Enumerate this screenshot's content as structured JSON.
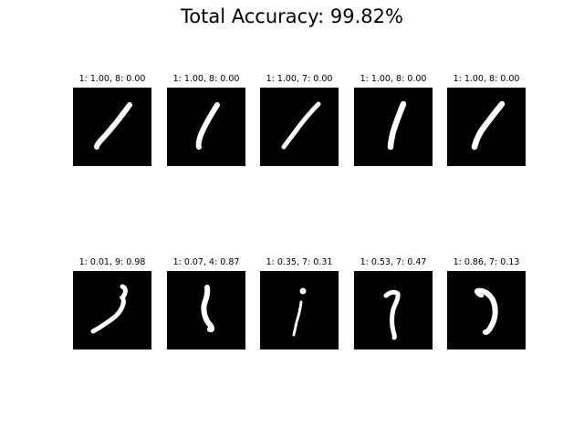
{
  "figure": {
    "title": "Total Accuracy: 99.82%"
  },
  "chart_data": {
    "type": "image-grid",
    "title": "Total Accuracy: 99.82%",
    "rows": 2,
    "cols": 5,
    "panels": [
      {
        "title": "1: 1.00, 8: 0.00",
        "top1": {
          "label": "1",
          "prob": 1.0
        },
        "top2": {
          "label": "8",
          "prob": 0.0
        }
      },
      {
        "title": "1: 1.00, 8: 0.00",
        "top1": {
          "label": "1",
          "prob": 1.0
        },
        "top2": {
          "label": "8",
          "prob": 0.0
        }
      },
      {
        "title": "1: 1.00, 7: 0.00",
        "top1": {
          "label": "1",
          "prob": 1.0
        },
        "top2": {
          "label": "7",
          "prob": 0.0
        }
      },
      {
        "title": "1: 1.00, 8: 0.00",
        "top1": {
          "label": "1",
          "prob": 1.0
        },
        "top2": {
          "label": "8",
          "prob": 0.0
        }
      },
      {
        "title": "1: 1.00, 8: 0.00",
        "top1": {
          "label": "1",
          "prob": 1.0
        },
        "top2": {
          "label": "8",
          "prob": 0.0
        }
      },
      {
        "title": "1: 0.01, 9: 0.98",
        "top1": {
          "label": "1",
          "prob": 0.01
        },
        "top2": {
          "label": "9",
          "prob": 0.98
        }
      },
      {
        "title": "1: 0.07, 4: 0.87",
        "top1": {
          "label": "1",
          "prob": 0.07
        },
        "top2": {
          "label": "4",
          "prob": 0.87
        }
      },
      {
        "title": "1: 0.35, 7: 0.31",
        "top1": {
          "label": "1",
          "prob": 0.35
        },
        "top2": {
          "label": "7",
          "prob": 0.31
        }
      },
      {
        "title": "1: 0.53, 7: 0.47",
        "top1": {
          "label": "1",
          "prob": 0.53
        },
        "top2": {
          "label": "7",
          "prob": 0.47
        }
      },
      {
        "title": "1: 0.86, 7: 0.13",
        "top1": {
          "label": "1",
          "prob": 0.86
        },
        "top2": {
          "label": "7",
          "prob": 0.13
        }
      }
    ],
    "colors": {
      "image_background": "#000000",
      "stroke": "#ffffff"
    }
  }
}
